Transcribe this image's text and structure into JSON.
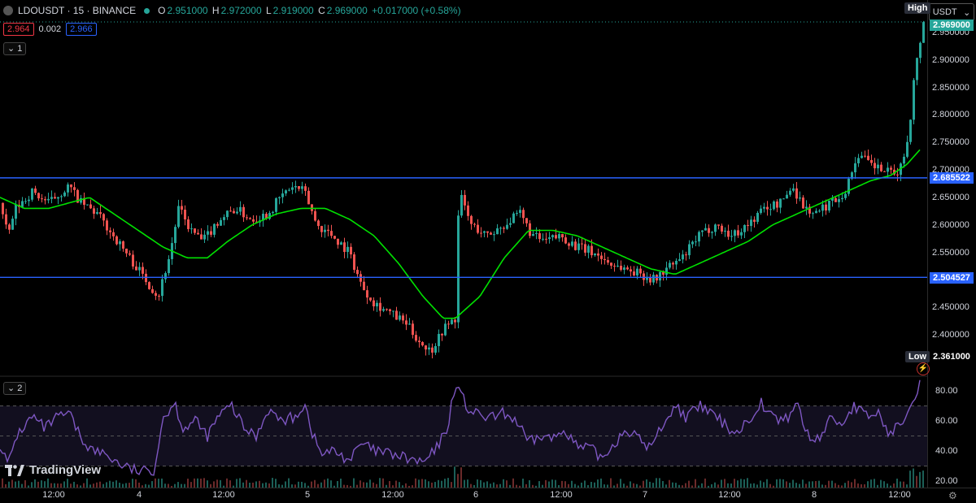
{
  "header": {
    "title": "LDOUSDT · 15 · BINANCE",
    "ohlc": {
      "o_label": "O",
      "o": "2.951000",
      "h_label": "H",
      "h": "2.972000",
      "l_label": "L",
      "l": "2.919000",
      "c_label": "C",
      "c": "2.969000",
      "change": "+0.017000 (+0.58%)"
    },
    "bid": "2.964",
    "spread": "0.002",
    "ask": "2.966"
  },
  "panes": {
    "main_tag": "1",
    "rsi_tag": "2"
  },
  "currency_selector": "USDT",
  "tags": {
    "high": "High",
    "low": "Low"
  },
  "price_axis": {
    "ticks": [
      "2.950000",
      "2.900000",
      "2.850000",
      "2.800000",
      "2.750000",
      "2.700000",
      "2.650000",
      "2.600000",
      "2.550000",
      "2.450000",
      "2.400000"
    ],
    "current_price": "2.969000",
    "level_top": "2.685522",
    "level_bottom": "2.504527",
    "low_value": "2.361000",
    "colors": {
      "current": "#26a69a",
      "level": "#2962ff",
      "low": "#000000"
    }
  },
  "rsi_axis": {
    "ticks": [
      "80.00",
      "60.00",
      "40.00",
      "20.00"
    ]
  },
  "time_axis": {
    "ticks": [
      "12:00",
      "4",
      "12:00",
      "5",
      "12:00",
      "6",
      "12:00",
      "7",
      "12:00",
      "8",
      "12:00"
    ]
  },
  "branding": {
    "logo_text": "TradingView"
  },
  "colors": {
    "up": "#26a69a",
    "down": "#ef5350",
    "ma": "#00e100",
    "rsi": "#7e57c2",
    "level": "#2962ff"
  },
  "chart_data": {
    "type": "candlestick",
    "symbol": "LDOUSDT",
    "interval": "15",
    "ylim": [
      2.35,
      2.98
    ],
    "horizontal_levels": [
      2.685522,
      2.504527
    ],
    "price_path": [
      [
        0,
        2.64
      ],
      [
        10,
        2.58
      ],
      [
        20,
        2.63
      ],
      [
        40,
        2.66
      ],
      [
        60,
        2.64
      ],
      [
        85,
        2.67
      ],
      [
        100,
        2.64
      ],
      [
        120,
        2.62
      ],
      [
        140,
        2.58
      ],
      [
        160,
        2.54
      ],
      [
        180,
        2.5
      ],
      [
        195,
        2.47
      ],
      [
        210,
        2.55
      ],
      [
        220,
        2.63
      ],
      [
        235,
        2.59
      ],
      [
        250,
        2.57
      ],
      [
        270,
        2.61
      ],
      [
        290,
        2.63
      ],
      [
        310,
        2.61
      ],
      [
        330,
        2.62
      ],
      [
        345,
        2.65
      ],
      [
        360,
        2.67
      ],
      [
        375,
        2.66
      ],
      [
        390,
        2.6
      ],
      [
        410,
        2.58
      ],
      [
        430,
        2.55
      ],
      [
        445,
        2.49
      ],
      [
        460,
        2.46
      ],
      [
        480,
        2.44
      ],
      [
        500,
        2.42
      ],
      [
        515,
        2.39
      ],
      [
        530,
        2.37
      ],
      [
        545,
        2.41
      ],
      [
        560,
        2.43
      ],
      [
        565,
        2.66
      ],
      [
        580,
        2.6
      ],
      [
        600,
        2.58
      ],
      [
        620,
        2.6
      ],
      [
        640,
        2.62
      ],
      [
        655,
        2.58
      ],
      [
        670,
        2.57
      ],
      [
        690,
        2.58
      ],
      [
        710,
        2.56
      ],
      [
        730,
        2.55
      ],
      [
        750,
        2.53
      ],
      [
        770,
        2.52
      ],
      [
        790,
        2.51
      ],
      [
        805,
        2.5
      ],
      [
        820,
        2.52
      ],
      [
        840,
        2.54
      ],
      [
        860,
        2.58
      ],
      [
        880,
        2.6
      ],
      [
        900,
        2.58
      ],
      [
        920,
        2.6
      ],
      [
        940,
        2.63
      ],
      [
        960,
        2.64
      ],
      [
        975,
        2.67
      ],
      [
        990,
        2.63
      ],
      [
        1005,
        2.62
      ],
      [
        1020,
        2.64
      ],
      [
        1040,
        2.66
      ],
      [
        1055,
        2.73
      ],
      [
        1070,
        2.71
      ],
      [
        1085,
        2.7
      ],
      [
        1100,
        2.69
      ],
      [
        1110,
        2.71
      ],
      [
        1118,
        2.77
      ],
      [
        1124,
        2.86
      ],
      [
        1130,
        2.92
      ],
      [
        1136,
        2.97
      ]
    ],
    "ma_path": [
      [
        0,
        2.65
      ],
      [
        30,
        2.63
      ],
      [
        60,
        2.63
      ],
      [
        85,
        2.64
      ],
      [
        110,
        2.65
      ],
      [
        140,
        2.62
      ],
      [
        170,
        2.59
      ],
      [
        200,
        2.56
      ],
      [
        230,
        2.54
      ],
      [
        255,
        2.54
      ],
      [
        280,
        2.57
      ],
      [
        310,
        2.6
      ],
      [
        340,
        2.62
      ],
      [
        370,
        2.63
      ],
      [
        400,
        2.63
      ],
      [
        430,
        2.61
      ],
      [
        460,
        2.58
      ],
      [
        490,
        2.53
      ],
      [
        520,
        2.47
      ],
      [
        545,
        2.43
      ],
      [
        560,
        2.43
      ],
      [
        590,
        2.47
      ],
      [
        620,
        2.54
      ],
      [
        650,
        2.59
      ],
      [
        680,
        2.59
      ],
      [
        710,
        2.58
      ],
      [
        740,
        2.56
      ],
      [
        770,
        2.54
      ],
      [
        800,
        2.52
      ],
      [
        830,
        2.51
      ],
      [
        860,
        2.53
      ],
      [
        890,
        2.55
      ],
      [
        920,
        2.57
      ],
      [
        950,
        2.6
      ],
      [
        980,
        2.62
      ],
      [
        1010,
        2.64
      ],
      [
        1040,
        2.66
      ],
      [
        1070,
        2.68
      ],
      [
        1095,
        2.69
      ],
      [
        1115,
        2.71
      ],
      [
        1133,
        2.74
      ]
    ],
    "rsi": {
      "ylim": [
        20,
        90
      ],
      "bands": [
        70,
        50,
        30
      ],
      "path": [
        [
          0,
          45
        ],
        [
          10,
          30
        ],
        [
          20,
          50
        ],
        [
          40,
          63
        ],
        [
          55,
          55
        ],
        [
          70,
          62
        ],
        [
          85,
          65
        ],
        [
          100,
          48
        ],
        [
          115,
          40
        ],
        [
          130,
          38
        ],
        [
          145,
          32
        ],
        [
          160,
          28
        ],
        [
          175,
          26
        ],
        [
          190,
          28
        ],
        [
          200,
          62
        ],
        [
          215,
          72
        ],
        [
          225,
          55
        ],
        [
          240,
          60
        ],
        [
          255,
          50
        ],
        [
          270,
          64
        ],
        [
          285,
          70
        ],
        [
          300,
          55
        ],
        [
          315,
          50
        ],
        [
          330,
          68
        ],
        [
          345,
          60
        ],
        [
          360,
          62
        ],
        [
          375,
          71
        ],
        [
          385,
          50
        ],
        [
          395,
          38
        ],
        [
          410,
          40
        ],
        [
          430,
          34
        ],
        [
          445,
          45
        ],
        [
          460,
          40
        ],
        [
          480,
          38
        ],
        [
          500,
          35
        ],
        [
          520,
          32
        ],
        [
          535,
          40
        ],
        [
          550,
          55
        ],
        [
          560,
          86
        ],
        [
          575,
          68
        ],
        [
          590,
          63
        ],
        [
          605,
          62
        ],
        [
          620,
          65
        ],
        [
          635,
          60
        ],
        [
          650,
          45
        ],
        [
          665,
          50
        ],
        [
          680,
          48
        ],
        [
          695,
          55
        ],
        [
          710,
          42
        ],
        [
          725,
          42
        ],
        [
          740,
          35
        ],
        [
          755,
          45
        ],
        [
          770,
          55
        ],
        [
          785,
          48
        ],
        [
          800,
          42
        ],
        [
          815,
          58
        ],
        [
          830,
          70
        ],
        [
          845,
          62
        ],
        [
          860,
          70
        ],
        [
          875,
          65
        ],
        [
          890,
          58
        ],
        [
          905,
          52
        ],
        [
          920,
          60
        ],
        [
          935,
          73
        ],
        [
          950,
          62
        ],
        [
          965,
          60
        ],
        [
          980,
          72
        ],
        [
          995,
          47
        ],
        [
          1010,
          50
        ],
        [
          1020,
          62
        ],
        [
          1035,
          58
        ],
        [
          1050,
          70
        ],
        [
          1065,
          63
        ],
        [
          1080,
          65
        ],
        [
          1095,
          50
        ],
        [
          1110,
          62
        ],
        [
          1122,
          75
        ],
        [
          1133,
          87
        ]
      ]
    }
  }
}
